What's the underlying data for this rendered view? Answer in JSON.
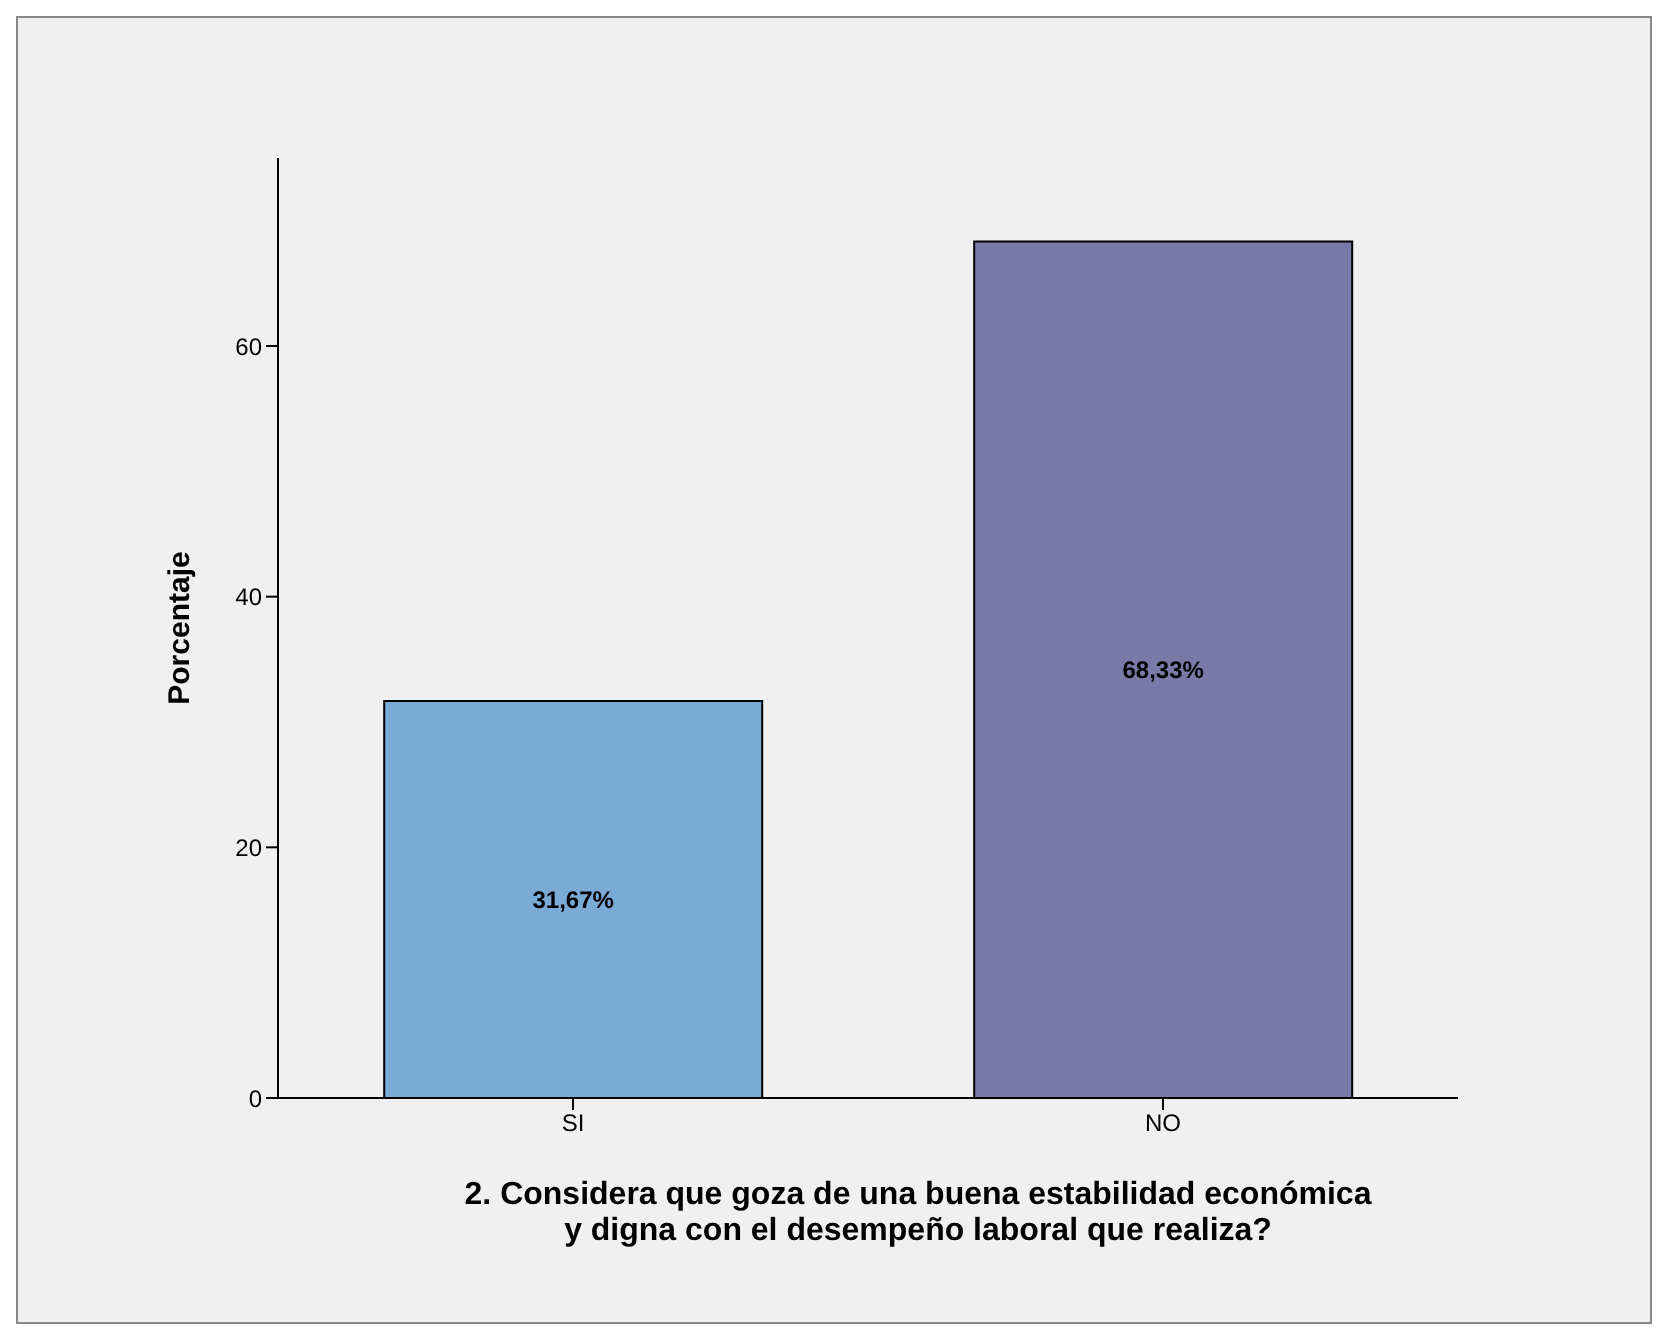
{
  "chart_data": {
    "type": "bar",
    "categories": [
      "SI",
      "NO"
    ],
    "values": [
      31.67,
      68.33
    ],
    "colors": [
      "#7aaad6",
      "#7a7aa8"
    ],
    "value_labels": [
      "31,67%",
      "68,33%"
    ],
    "ylabel": "Porcentaje",
    "xlabel": "2. Considera que goza de una buena estabilidad económica y digna con el desempeño laboral que realiza?",
    "ylim": [
      0,
      75
    ],
    "yticks": [
      0,
      20,
      40,
      60
    ],
    "grid": false,
    "legend": false
  }
}
